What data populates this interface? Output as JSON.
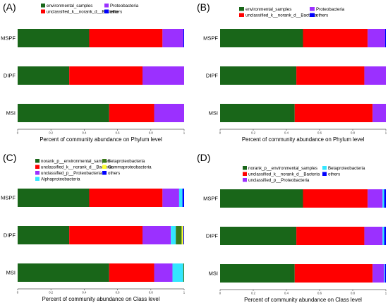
{
  "chart_data": [
    {
      "panel": "(A)",
      "type": "bar",
      "orientation": "horizontal",
      "stacked": true,
      "categories": [
        "MSPF",
        "DIPF",
        "MSI"
      ],
      "xlabel": "Percent of community abundance on Phylum level",
      "xlim": [
        0,
        1
      ],
      "ticks": [
        "0",
        "0.2",
        "0.4",
        "0.6",
        "0.8",
        "1"
      ],
      "legend_placement": "top",
      "series": [
        {
          "name": "environmental_samples",
          "color": "#196619",
          "values": [
            0.43,
            0.31,
            0.55
          ]
        },
        {
          "name": "unclassified_k__norank_d__Bacteria",
          "color": "#ff0000",
          "values": [
            0.44,
            0.44,
            0.27
          ]
        },
        {
          "name": "Proteobacteria",
          "color": "#9b30ff",
          "values": [
            0.125,
            0.25,
            0.18
          ]
        },
        {
          "name": "others",
          "color": "#0000ff",
          "values": [
            0.005,
            0.0,
            0.0
          ]
        }
      ]
    },
    {
      "panel": "(B)",
      "type": "bar",
      "orientation": "horizontal",
      "stacked": true,
      "categories": [
        "MSPF",
        "DIPF",
        "MSI"
      ],
      "xlabel": "Percent of community abundance on Phylum level",
      "xlim": [
        0,
        1
      ],
      "ticks": [
        "0",
        "0.2",
        "0.4",
        "0.6",
        "0.8",
        "1"
      ],
      "legend_placement": "top",
      "series": [
        {
          "name": "environmental_samples",
          "color": "#196619",
          "values": [
            0.5,
            0.46,
            0.45
          ]
        },
        {
          "name": "unclassified_k__norank_d__Bacteria",
          "color": "#ff0000",
          "values": [
            0.39,
            0.41,
            0.47
          ]
        },
        {
          "name": "Proteobacteria",
          "color": "#9b30ff",
          "values": [
            0.105,
            0.13,
            0.08
          ]
        },
        {
          "name": "others",
          "color": "#0000ff",
          "values": [
            0.005,
            0.0,
            0.0
          ]
        }
      ]
    },
    {
      "panel": "(C)",
      "type": "bar",
      "orientation": "horizontal",
      "stacked": true,
      "categories": [
        "MSPF",
        "DIPF",
        "MSI"
      ],
      "xlabel": "Percent of community abundance on Class level",
      "xlim": [
        0,
        1
      ],
      "ticks": [
        "0",
        "0.2",
        "0.4",
        "0.6",
        "0.8",
        "1"
      ],
      "legend_placement": "top",
      "series": [
        {
          "name": "norank_p__environmental_samples",
          "color": "#196619",
          "values": [
            0.43,
            0.31,
            0.55
          ]
        },
        {
          "name": "unclassified_k__norank_d__Bacteria",
          "color": "#ff0000",
          "values": [
            0.44,
            0.44,
            0.27
          ]
        },
        {
          "name": "unclassified_p__Proteobacteria",
          "color": "#9b30ff",
          "values": [
            0.1,
            0.17,
            0.11
          ]
        },
        {
          "name": "Alphaproteobacteria",
          "color": "#33e6ff",
          "values": [
            0.02,
            0.03,
            0.065
          ]
        },
        {
          "name": "Betaproteobacteria",
          "color": "#3a7a1a",
          "values": [
            0.0,
            0.035,
            0.005
          ]
        },
        {
          "name": "Gammaproteobacteria",
          "color": "#ffff33",
          "values": [
            0.0,
            0.01,
            0.0
          ]
        },
        {
          "name": "others",
          "color": "#0000ff",
          "values": [
            0.01,
            0.005,
            0.0
          ]
        }
      ]
    },
    {
      "panel": "(D)",
      "type": "bar",
      "orientation": "horizontal",
      "stacked": true,
      "categories": [
        "MSPF",
        "DIPF",
        "MSI"
      ],
      "xlabel": "Percent of community abundance on Class level",
      "xlim": [
        0,
        1
      ],
      "ticks": [
        "0",
        "0.2",
        "0.4",
        "0.6",
        "0.8",
        "1"
      ],
      "legend_placement": "top",
      "series": [
        {
          "name": "norank_p__environmental_samples",
          "color": "#196619",
          "values": [
            0.5,
            0.46,
            0.45
          ]
        },
        {
          "name": "unclassified_k__norank_d__Bacteria",
          "color": "#ff0000",
          "values": [
            0.39,
            0.41,
            0.47
          ]
        },
        {
          "name": "unclassified_p__Proteobacteria",
          "color": "#9b30ff",
          "values": [
            0.09,
            0.11,
            0.07
          ]
        },
        {
          "name": "Betaproteobacteria",
          "color": "#33e6ff",
          "values": [
            0.01,
            0.01,
            0.005
          ]
        },
        {
          "name": "others",
          "color": "#0000ff",
          "values": [
            0.01,
            0.01,
            0.005
          ]
        }
      ]
    }
  ]
}
